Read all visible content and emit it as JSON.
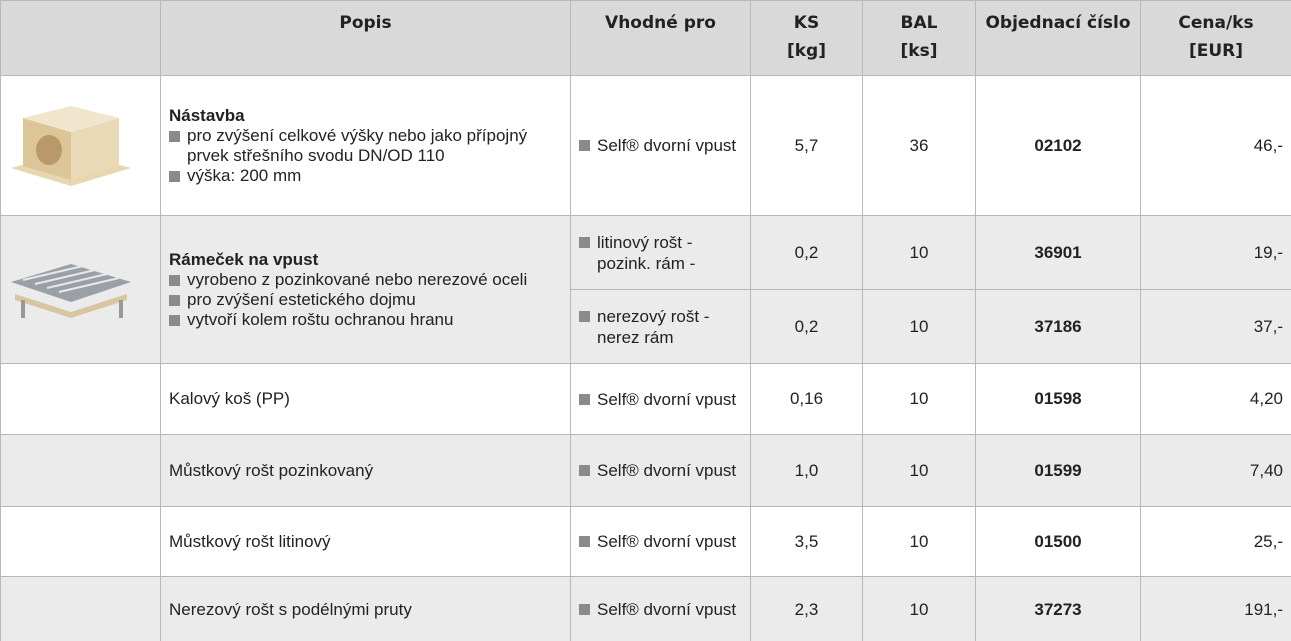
{
  "header": {
    "columns": [
      "Popis",
      "Vhodné pro",
      "KS\n[kg]",
      "BAL\n[ks]",
      "Objednací číslo",
      "Cena/ks\n[EUR]"
    ]
  },
  "rows": [
    {
      "title": "Nástavba",
      "bullets": [
        "pro zvýšení celkové výšky nebo jako přípojný prvek střešního svodu DN/OD 110",
        "výška: 200 mm"
      ],
      "variants": [
        {
          "suitable": "Self® dvorní vpust",
          "ks": "5,7",
          "bal": "36",
          "code": "02102",
          "price": "46,-"
        }
      ]
    },
    {
      "title": "Rámeček na vpust",
      "bullets": [
        "vyrobeno z pozinkované nebo nerezové oceli",
        "pro zvýšení estetického dojmu",
        "vytvoří kolem roštu ochranou hranu"
      ],
      "variants": [
        {
          "suitable": "litinový rošt - pozink. rám -",
          "ks": "0,2",
          "bal": "10",
          "code": "36901",
          "price": "19,-"
        },
        {
          "suitable": "nerezový rošt - nerez rám",
          "ks": "0,2",
          "bal": "10",
          "code": "37186",
          "price": "37,-"
        }
      ]
    },
    {
      "description": "Kalový koš (PP)",
      "variants": [
        {
          "suitable": "Self® dvorní vpust",
          "ks": "0,16",
          "bal": "10",
          "code": "01598",
          "price": "4,20"
        }
      ]
    },
    {
      "description": "Můstkový rošt pozinkovaný",
      "variants": [
        {
          "suitable": "Self® dvorní vpust",
          "ks": "1,0",
          "bal": "10",
          "code": "01599",
          "price": "7,40"
        }
      ]
    },
    {
      "description": "Můstkový rošt litinový",
      "variants": [
        {
          "suitable": "Self® dvorní vpust",
          "ks": "3,5",
          "bal": "10",
          "code": "01500",
          "price": "25,-"
        }
      ]
    },
    {
      "description": "Nerezový rošt s podélnými pruty",
      "variants": [
        {
          "suitable": "Self® dvorní vpust",
          "ks": "2,3",
          "bal": "10",
          "code": "37273",
          "price": "191,-"
        }
      ]
    }
  ]
}
